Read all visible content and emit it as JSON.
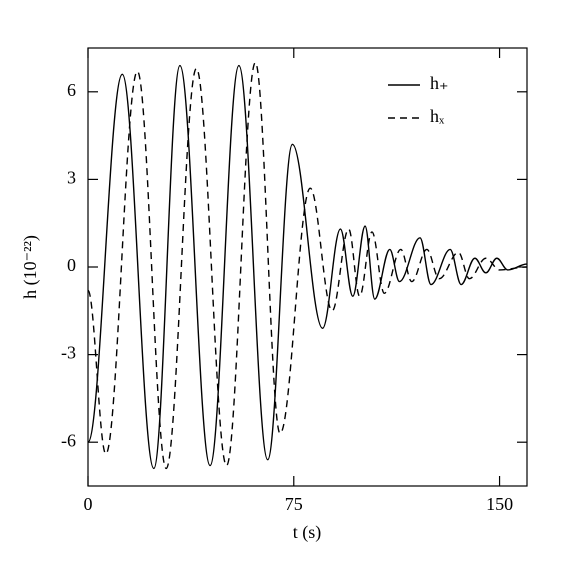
{
  "chart_data": {
    "type": "line",
    "xlabel": "t (s)",
    "ylabel": "h (10⁻²²)",
    "xlim": [
      0,
      160
    ],
    "xticks": [
      0,
      75,
      150
    ],
    "ylim": [
      -7.5,
      7.5
    ],
    "yticks": [
      -6,
      -3,
      0,
      3,
      6
    ],
    "legend": "top-right",
    "series": [
      {
        "name": "h₊",
        "color": "#000000",
        "dash": "solid",
        "x": [
          0,
          12.5,
          24,
          33.5,
          44.5,
          55,
          65.5,
          74.5,
          85.5,
          92,
          96.5,
          101,
          104.5,
          110,
          113.5,
          121,
          125,
          132,
          136,
          141,
          145,
          149,
          153,
          160
        ],
        "values": [
          -6,
          6.6,
          -6.9,
          6.9,
          -6.8,
          6.9,
          -6.6,
          4.2,
          -2.1,
          1.3,
          -1.0,
          1.4,
          -1.1,
          0.6,
          -0.5,
          1.0,
          -0.6,
          0.6,
          -0.6,
          0.3,
          -0.2,
          0.3,
          -0.1,
          0.1
        ]
      },
      {
        "name": "hₓ",
        "color": "#000000",
        "dash": "dashed",
        "x": [
          0,
          6.5,
          18,
          28.5,
          39.5,
          50.5,
          61,
          70,
          81,
          89,
          95,
          99,
          103.5,
          108,
          114,
          118,
          123.5,
          128,
          135,
          139,
          145,
          150,
          160
        ],
        "values": [
          -0.8,
          -6.4,
          6.7,
          -6.9,
          6.8,
          -6.8,
          7.0,
          -5.7,
          2.7,
          -1.5,
          1.3,
          -1.0,
          1.2,
          -0.9,
          0.6,
          -0.5,
          0.6,
          -0.4,
          0.5,
          -0.4,
          0.3,
          -0.1,
          0
        ]
      }
    ]
  }
}
